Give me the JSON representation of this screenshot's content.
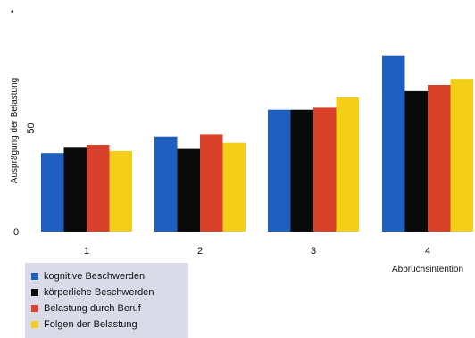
{
  "chart_data": {
    "type": "bar",
    "categories": [
      "1",
      "2",
      "3",
      "4"
    ],
    "category_note": "Abbruchsintention",
    "ylabel": "Ausprägung der Belastung",
    "y_ticks": [
      {
        "value": 0,
        "label": "0"
      },
      {
        "value": 50,
        "label": "50"
      }
    ],
    "ylim": [
      0,
      100
    ],
    "legend_position": "bottom-left",
    "series": [
      {
        "name": "kognitive Beschwerden",
        "color": "#1f5fbf",
        "values": [
          38,
          46,
          59,
          85
        ]
      },
      {
        "name": "körperliche Beschwerden",
        "color": "#0a0a0a",
        "values": [
          41,
          40,
          59,
          68
        ]
      },
      {
        "name": "Belastung durch Beruf",
        "color": "#d9412b",
        "values": [
          42,
          47,
          60,
          71
        ]
      },
      {
        "name": "Folgen der Belastung",
        "color": "#f3cf1a",
        "values": [
          39,
          43,
          65,
          74
        ]
      }
    ]
  }
}
